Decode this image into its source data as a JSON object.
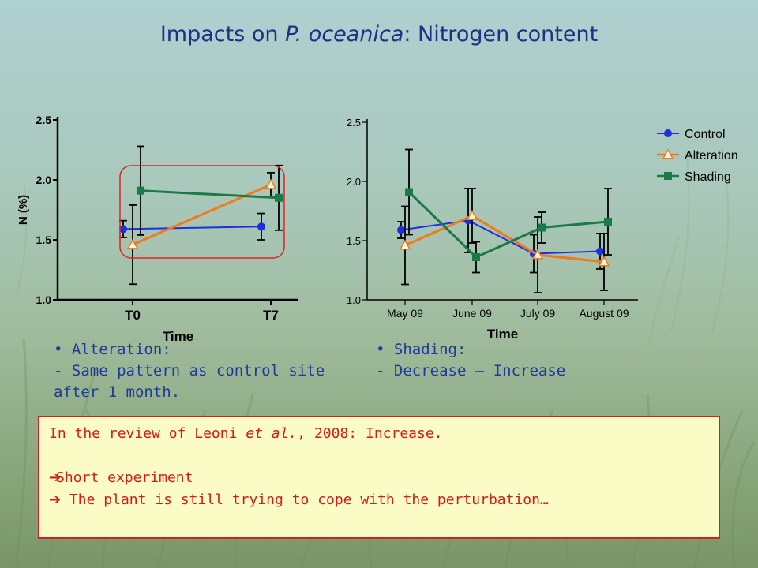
{
  "title": {
    "prefix": "Impacts on ",
    "species": "P. oceanica",
    "suffix": ": Nitrogen content"
  },
  "chart_data": [
    {
      "type": "line",
      "categories": [
        "T0",
        "T7"
      ],
      "xlabel": "Time",
      "ylabel": "N (%)",
      "ylim": [
        1.0,
        2.5
      ],
      "yticks": [
        "1.0",
        "1.5",
        "2.0",
        "2.5"
      ],
      "series": [
        {
          "name": "Control",
          "color": "#1d2fe0",
          "marker": "circle",
          "values": [
            1.59,
            1.61
          ],
          "err": [
            0.07,
            0.11
          ]
        },
        {
          "name": "Alteration",
          "color": "#f07a1a",
          "marker": "triangle",
          "values": [
            1.46,
            1.96
          ],
          "err": [
            0.33,
            0.1
          ]
        },
        {
          "name": "Shading",
          "color": "#1b7a45",
          "marker": "square",
          "values": [
            1.91,
            1.85
          ],
          "err": [
            0.37,
            0.27
          ]
        }
      ],
      "annotation": "red rounded highlight box around both time points"
    },
    {
      "type": "line",
      "categories": [
        "May 09",
        "June 09",
        "July 09",
        "August 09"
      ],
      "xlabel": "Time",
      "ylabel": "",
      "ylim": [
        1.0,
        2.5
      ],
      "yticks": [
        "1.0",
        "1.5",
        "2.0",
        "2.5"
      ],
      "legend_position": "top-right",
      "series": [
        {
          "name": "Control",
          "color": "#1d2fe0",
          "marker": "circle",
          "values": [
            1.59,
            1.67,
            1.39,
            1.41
          ],
          "err": [
            0.07,
            0.27,
            0.16,
            0.15
          ]
        },
        {
          "name": "Alteration",
          "color": "#f07a1a",
          "marker": "triangle",
          "values": [
            1.46,
            1.71,
            1.38,
            1.32
          ],
          "err": [
            0.33,
            0.23,
            0.32,
            0.24
          ]
        },
        {
          "name": "Shading",
          "color": "#1b7a45",
          "marker": "square",
          "values": [
            1.91,
            1.36,
            1.61,
            1.66
          ],
          "err": [
            0.36,
            0.13,
            0.13,
            0.28
          ]
        }
      ]
    }
  ],
  "bullets_left": [
    "• Alteration:",
    "- Same pattern as control site",
    "after 1 month."
  ],
  "bullets_right": [
    "• Shading:",
    "- Decrease – Increase"
  ],
  "note": {
    "line1_prefix": "In the review of Leoni ",
    "line1_italic": "et al.",
    "line1_suffix": ", 2008: Increase.",
    "arrow": "➔",
    "line2": "Short experiment",
    "line3": " The plant is still trying to cope with the perturbation…"
  }
}
